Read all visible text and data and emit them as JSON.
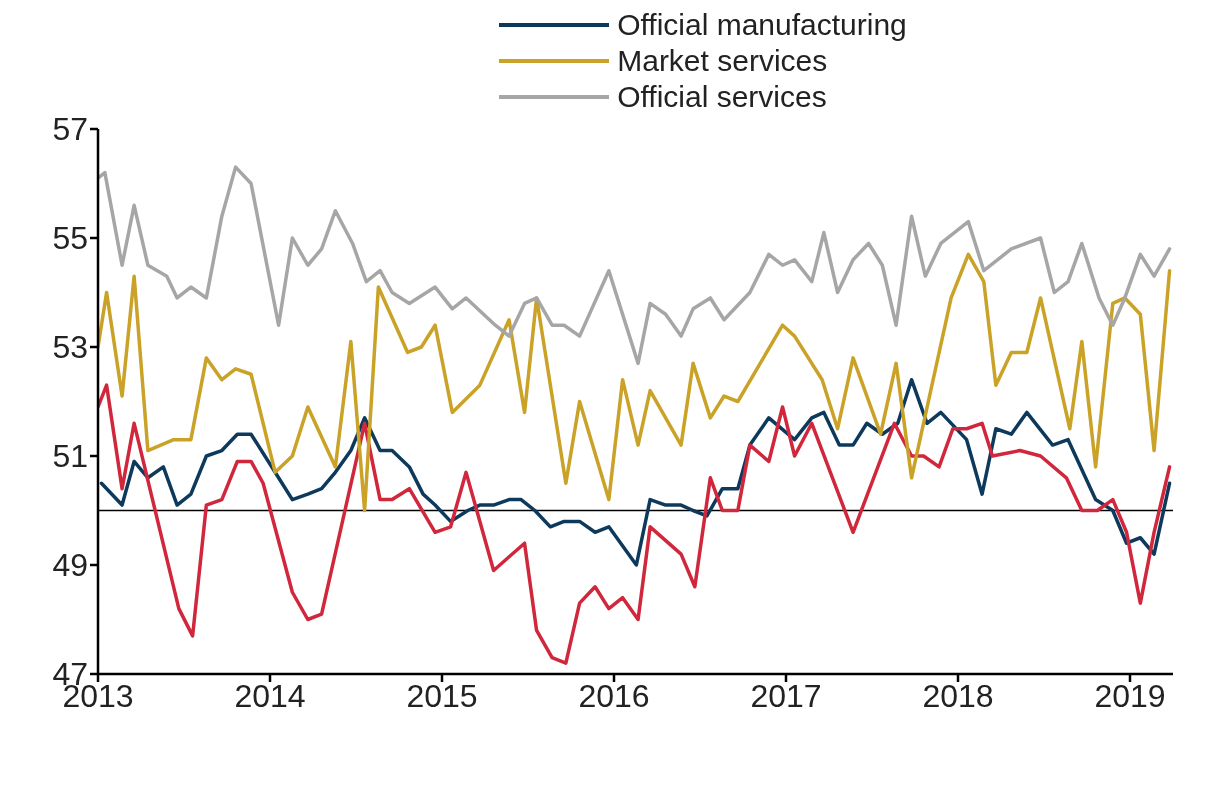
{
  "chart_data": {
    "type": "line",
    "ylim": [
      47,
      57
    ],
    "yticks": [
      47,
      49,
      51,
      53,
      55,
      57
    ],
    "xlim": [
      2013,
      2019.25
    ],
    "xticks": [
      2013,
      2014,
      2015,
      2016,
      2017,
      2018,
      2019
    ],
    "grid": false,
    "legend": "top",
    "marker": "none",
    "line_style": "solid",
    "ref_lines": [
      {
        "axis": "y",
        "value": 50,
        "color": "#000000"
      }
    ],
    "series": [
      {
        "name": "Official manufacturing",
        "color": "#0d3a5c",
        "x": [
          2013.02,
          2013.14,
          2013.21,
          2013.29,
          2013.38,
          2013.46,
          2013.54,
          2013.63,
          2013.72,
          2013.81,
          2013.89,
          2014.05,
          2014.13,
          2014.22,
          2014.3,
          2014.38,
          2014.47,
          2014.55,
          2014.64,
          2014.71,
          2014.81,
          2014.89,
          2014.96,
          2015.05,
          2015.15,
          2015.22,
          2015.3,
          2015.39,
          2015.46,
          2015.54,
          2015.63,
          2015.71,
          2015.8,
          2015.89,
          2015.97,
          2016.13,
          2016.21,
          2016.3,
          2016.39,
          2016.46,
          2016.54,
          2016.63,
          2016.72,
          2016.79,
          2016.9,
          2017.05,
          2017.15,
          2017.22,
          2017.31,
          2017.39,
          2017.47,
          2017.56,
          2017.65,
          2017.73,
          2017.82,
          2017.9,
          2018.05,
          2018.14,
          2018.22,
          2018.31,
          2018.4,
          2018.55,
          2018.64,
          2018.8,
          2018.9,
          2018.98,
          2019.06,
          2019.14,
          2019.23
        ],
        "values": [
          50.5,
          50.1,
          50.9,
          50.6,
          50.8,
          50.1,
          50.3,
          51.0,
          51.1,
          51.4,
          51.4,
          50.6,
          50.2,
          50.3,
          50.4,
          50.7,
          51.1,
          51.7,
          51.1,
          51.1,
          50.8,
          50.3,
          50.1,
          49.8,
          50.0,
          50.1,
          50.1,
          50.2,
          50.2,
          50.0,
          49.7,
          49.8,
          49.8,
          49.6,
          49.7,
          49.0,
          50.2,
          50.1,
          50.1,
          50.0,
          49.9,
          50.4,
          50.4,
          51.2,
          51.7,
          51.3,
          51.7,
          51.8,
          51.2,
          51.2,
          51.6,
          51.4,
          51.6,
          52.4,
          51.6,
          51.8,
          51.3,
          50.3,
          51.5,
          51.4,
          51.8,
          51.2,
          51.3,
          50.2,
          50.0,
          49.4,
          49.5,
          49.2,
          50.5
        ]
      },
      {
        "color": "#d0273c",
        "x": [
          2013,
          2013.05,
          2013.14,
          2013.21,
          2013.47,
          2013.55,
          2013.63,
          2013.72,
          2013.81,
          2013.89,
          2013.96,
          2014.13,
          2014.22,
          2014.3,
          2014.55,
          2014.64,
          2014.71,
          2014.81,
          2014.96,
          2015.05,
          2015.14,
          2015.3,
          2015.48,
          2015.55,
          2015.64,
          2015.72,
          2015.8,
          2015.89,
          2015.97,
          2016.05,
          2016.14,
          2016.21,
          2016.39,
          2016.47,
          2016.56,
          2016.63,
          2016.72,
          2016.79,
          2016.9,
          2016.98,
          2017.05,
          2017.15,
          2017.39,
          2017.63,
          2017.73,
          2017.8,
          2017.89,
          2017.97,
          2018.05,
          2018.14,
          2018.2,
          2018.36,
          2018.48,
          2018.63,
          2018.72,
          2018.81,
          2018.9,
          2018.98,
          2019.06,
          2019.14,
          2019.23
        ],
        "values": [
          51.9,
          52.3,
          50.4,
          51.6,
          48.2,
          47.7,
          50.1,
          50.2,
          50.9,
          50.9,
          50.5,
          48.5,
          48.0,
          48.1,
          51.6,
          50.2,
          50.2,
          50.4,
          49.6,
          49.7,
          50.7,
          48.9,
          49.4,
          47.8,
          47.3,
          47.2,
          48.3,
          48.6,
          48.2,
          48.4,
          48.0,
          49.7,
          49.2,
          48.6,
          50.6,
          50.0,
          50.0,
          51.2,
          50.9,
          51.9,
          51.0,
          51.6,
          49.6,
          51.6,
          51.0,
          51.0,
          50.8,
          51.5,
          51.5,
          51.6,
          51.0,
          51.1,
          51.0,
          50.6,
          50.0,
          50.0,
          50.2,
          49.6,
          48.3,
          49.6,
          50.8
        ]
      },
      {
        "name": "Market services",
        "color": "#c9a227",
        "x": [
          2013,
          2013.05,
          2013.14,
          2013.21,
          2013.29,
          2013.44,
          2013.54,
          2013.63,
          2013.72,
          2013.8,
          2013.89,
          2014.03,
          2014.13,
          2014.22,
          2014.38,
          2014.47,
          2014.55,
          2014.63,
          2014.8,
          2014.88,
          2014.96,
          2015.06,
          2015.22,
          2015.39,
          2015.48,
          2015.55,
          2015.72,
          2015.8,
          2015.97,
          2016.05,
          2016.14,
          2016.21,
          2016.39,
          2016.46,
          2016.56,
          2016.64,
          2016.72,
          2016.98,
          2017.05,
          2017.21,
          2017.3,
          2017.39,
          2017.55,
          2017.64,
          2017.73,
          2017.96,
          2018.06,
          2018.15,
          2018.22,
          2018.31,
          2018.4,
          2018.48,
          2018.65,
          2018.72,
          2018.8,
          2018.9,
          2018.97,
          2019.06,
          2019.14,
          2019.23
        ],
        "values": [
          53.0,
          54.0,
          52.1,
          54.3,
          51.1,
          51.3,
          51.3,
          52.8,
          52.4,
          52.6,
          52.5,
          50.7,
          51.0,
          51.9,
          50.8,
          53.1,
          50.0,
          54.1,
          52.9,
          53.0,
          53.4,
          51.8,
          52.3,
          53.5,
          51.8,
          53.9,
          50.5,
          52.0,
          50.2,
          52.4,
          51.2,
          52.2,
          51.2,
          52.7,
          51.7,
          52.1,
          52.0,
          53.4,
          53.2,
          52.4,
          51.5,
          52.8,
          51.4,
          52.7,
          50.6,
          53.9,
          54.7,
          54.2,
          52.3,
          52.9,
          52.9,
          53.9,
          51.5,
          53.1,
          50.8,
          53.8,
          53.9,
          53.6,
          51.1,
          54.4
        ]
      },
      {
        "name": "Official services",
        "color": "#a6a6a6",
        "x": [
          2013,
          2013.04,
          2013.14,
          2013.21,
          2013.29,
          2013.4,
          2013.46,
          2013.54,
          2013.63,
          2013.72,
          2013.8,
          2013.89,
          2014.05,
          2014.13,
          2014.22,
          2014.3,
          2014.38,
          2014.48,
          2014.56,
          2014.64,
          2014.71,
          2014.81,
          2014.96,
          2015.06,
          2015.14,
          2015.31,
          2015.39,
          2015.48,
          2015.55,
          2015.64,
          2015.71,
          2015.8,
          2015.97,
          2016.14,
          2016.21,
          2016.3,
          2016.39,
          2016.46,
          2016.56,
          2016.64,
          2016.79,
          2016.9,
          2016.98,
          2017.05,
          2017.15,
          2017.22,
          2017.3,
          2017.39,
          2017.48,
          2017.56,
          2017.64,
          2017.73,
          2017.81,
          2017.9,
          2018.06,
          2018.15,
          2018.31,
          2018.48,
          2018.56,
          2018.64,
          2018.72,
          2018.82,
          2018.9,
          2018.97,
          2019.06,
          2019.14,
          2019.23
        ],
        "values": [
          56.1,
          56.2,
          54.5,
          55.6,
          54.5,
          54.3,
          53.9,
          54.1,
          53.9,
          55.4,
          56.3,
          56.0,
          53.4,
          55.0,
          54.5,
          54.8,
          55.5,
          54.9,
          54.2,
          54.4,
          54.0,
          53.8,
          54.1,
          53.7,
          53.9,
          53.4,
          53.2,
          53.8,
          53.9,
          53.4,
          53.4,
          53.2,
          54.4,
          52.7,
          53.8,
          53.6,
          53.2,
          53.7,
          53.9,
          53.5,
          54.0,
          54.7,
          54.5,
          54.6,
          54.2,
          55.1,
          54.0,
          54.6,
          54.9,
          54.5,
          53.4,
          55.4,
          54.3,
          54.9,
          55.3,
          54.4,
          54.8,
          55.0,
          54.0,
          54.2,
          54.9,
          53.9,
          53.4,
          53.9,
          54.7,
          54.3,
          54.8
        ]
      }
    ]
  }
}
